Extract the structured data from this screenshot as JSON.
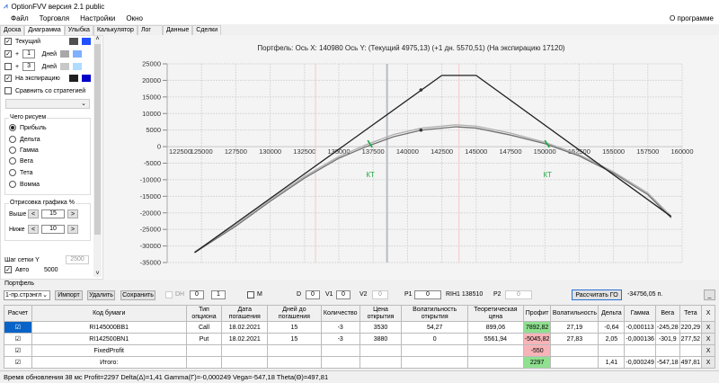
{
  "window": {
    "title": "OptionFVV версия 2.1 public"
  },
  "menu": {
    "items": [
      "Файл",
      "Торговля",
      "Настройки",
      "Окно"
    ],
    "about": "О программе"
  },
  "tabs": [
    "Доска",
    "Диаграмма",
    "Улыбка",
    "Калькулятор",
    "Лог",
    "Данные",
    "Сделки"
  ],
  "active_tab": "Диаграмма",
  "left_panel": {
    "current": {
      "label": "Текущий",
      "checked": true,
      "colors": [
        "#505050",
        "#2050ff"
      ]
    },
    "plus1": {
      "sign": "+",
      "value": "1",
      "unit": "Дней",
      "checked": true,
      "colors": [
        "#a8a8a8",
        "#80b0ff"
      ]
    },
    "plus3": {
      "sign": "+",
      "value": "3",
      "unit": "Дней",
      "checked": false,
      "colors": [
        "#c8c8c8",
        "#b0dcff"
      ]
    },
    "expiration": {
      "label": "На экспирацию",
      "checked": true,
      "colors": [
        "#202020",
        "#0000c8"
      ]
    },
    "compare": {
      "label": "Сравнить со стратегией",
      "checked": false
    },
    "draw_group": {
      "title": "Чего рисуем",
      "options": [
        "Прибыль",
        "Дельта",
        "Гамма",
        "Вега",
        "Тета",
        "Вомма"
      ],
      "selected": "Прибыль"
    },
    "render_group": {
      "title": "Отрисовка графика %",
      "above_label": "Выше",
      "above": "15",
      "below_label": "Ниже",
      "below": "10",
      "prev": "<",
      "next": ">"
    },
    "grid_step": {
      "label": "Шаг сетки Y",
      "value": "2500",
      "auto_label": "Авто",
      "auto_checked": true,
      "auto_value": "5000"
    }
  },
  "chart_header": "Портфель: Ось X: 140980 Ось Y:  (Текущий 4975,13)  (+1 дн. 5570,51)  (На экспирацию 17120)",
  "chart_data": {
    "type": "line",
    "title": "",
    "xlim": [
      122500,
      160000
    ],
    "ylim": [
      -35000,
      25000
    ],
    "x_ticks": [
      122500,
      125000,
      127500,
      130000,
      132500,
      135000,
      137500,
      140000,
      142500,
      145000,
      147500,
      150000,
      152500,
      155000,
      157500,
      160000
    ],
    "y_ticks": [
      25000,
      20000,
      15000,
      10000,
      5000,
      0,
      -5000,
      -10000,
      -15000,
      -20000,
      -25000,
      -30000,
      -35000
    ],
    "grid": true,
    "series": [
      {
        "name": "На экспирацию",
        "color": "#202020",
        "points": [
          [
            124500,
            -32000
          ],
          [
            142500,
            21500
          ],
          [
            145000,
            21500
          ],
          [
            159200,
            -21100
          ]
        ]
      },
      {
        "name": "+1 дн.",
        "color": "#b0b0b0",
        "points": [
          [
            124500,
            -31800
          ],
          [
            127500,
            -23500
          ],
          [
            130000,
            -16000
          ],
          [
            132500,
            -9000
          ],
          [
            135000,
            -3000
          ],
          [
            137000,
            600
          ],
          [
            139000,
            3700
          ],
          [
            141000,
            5570
          ],
          [
            143500,
            6600
          ],
          [
            145000,
            6200
          ],
          [
            147500,
            4100
          ],
          [
            150000,
            1300
          ],
          [
            152500,
            -2400
          ],
          [
            155000,
            -7600
          ],
          [
            157500,
            -14000
          ],
          [
            159200,
            -21000
          ]
        ]
      },
      {
        "name": "Текущий",
        "color": "#707070",
        "points": [
          [
            124500,
            -32000
          ],
          [
            127500,
            -24000
          ],
          [
            130000,
            -16500
          ],
          [
            132500,
            -9500
          ],
          [
            135000,
            -3500
          ],
          [
            137000,
            0
          ],
          [
            139000,
            3000
          ],
          [
            141000,
            4975
          ],
          [
            143500,
            6000
          ],
          [
            145000,
            5600
          ],
          [
            147500,
            3500
          ],
          [
            150000,
            900
          ],
          [
            152500,
            -2800
          ],
          [
            155000,
            -8000
          ],
          [
            157500,
            -14500
          ],
          [
            159200,
            -21500
          ]
        ]
      }
    ],
    "cursor_x": 140980,
    "cursor_values": [
      17120,
      4975.13
    ],
    "current_price": 138510,
    "red_lines": [
      133300,
      143750
    ],
    "markers": [
      {
        "label": "КТ",
        "x": 137300,
        "color": "#22aa44"
      },
      {
        "label": "КТ",
        "x": 150200,
        "color": "#22aa44"
      }
    ]
  },
  "portfolio": {
    "title": "Портфель",
    "strategy": "1-пр.стрэнгл",
    "import": "Импорт",
    "delete": "Удалить",
    "save": "Сохранить",
    "dh_label": "DH",
    "dh_checked": false,
    "spin1": "0",
    "spin2": "1",
    "m_label": "M",
    "m_checked": false,
    "d_label": "D",
    "d": "0",
    "v1_label": "V1",
    "v1": "0",
    "v2_label": "V2",
    "v2": "0",
    "p1_label": "P1",
    "p1": "0",
    "instrument": "RIH1 138510",
    "p2_label": "P2",
    "p2": "0",
    "calc_button": "Рассчитать ГО",
    "calc_value": "-34756,05 п.",
    "min_button": "_"
  },
  "table": {
    "headers": [
      "Расчет",
      "Код бумаги",
      "Тип опциона",
      "Дата погашения",
      "Дней до погашения",
      "Количество",
      "Цена открытия",
      "Волатильность открытия",
      "Теоретическая цена",
      "Профит",
      "Волатильность",
      "Дельта",
      "Гамма",
      "Вега",
      "Тета",
      "X"
    ],
    "rows": [
      {
        "check": "☑",
        "code": "RI145000BB1",
        "type": "Call",
        "date": "18.02.2021",
        "days": "15",
        "qty": "-3",
        "price": "3530",
        "vol_open": "54,27",
        "theo": "899,06",
        "profit": "7892,82",
        "profit_color": "green",
        "vol": "27,19",
        "delta": "-0,64",
        "gamma": "-0,000113",
        "vega": "-245,28",
        "theta": "220,29",
        "x": "X"
      },
      {
        "check": "☑",
        "code": "RI142500BN1",
        "type": "Put",
        "date": "18.02.2021",
        "days": "15",
        "qty": "-3",
        "price": "3880",
        "vol_open": "0",
        "theo": "5561,94",
        "profit": "-5045,82",
        "profit_color": "red",
        "vol": "27,83",
        "delta": "2,05",
        "gamma": "-0,000136",
        "vega": "-301,9",
        "theta": "277,52",
        "x": "X"
      },
      {
        "check": "☑",
        "code": "FixedProfit",
        "type": "",
        "date": "",
        "days": "",
        "qty": "",
        "price": "",
        "vol_open": "",
        "theo": "",
        "profit": "-550",
        "profit_color": "red",
        "vol": "",
        "delta": "",
        "gamma": "",
        "vega": "",
        "theta": "",
        "x": "X"
      },
      {
        "check": "☑",
        "code": "Итого:",
        "type": "",
        "date": "",
        "days": "",
        "qty": "",
        "price": "",
        "vol_open": "",
        "theo": "",
        "profit": "2297",
        "profit_color": "green",
        "vol": "",
        "delta": "1,41",
        "gamma": "-0,000249",
        "vega": "-547,18",
        "theta": "497,81",
        "x": "X"
      }
    ]
  },
  "status": "Время обновления 38 мс   Profit=2297 Delta(Δ)=1,41 Gamma(Γ)=-0,000249 Vega=-547,18 Theta(Θ)=497,81"
}
